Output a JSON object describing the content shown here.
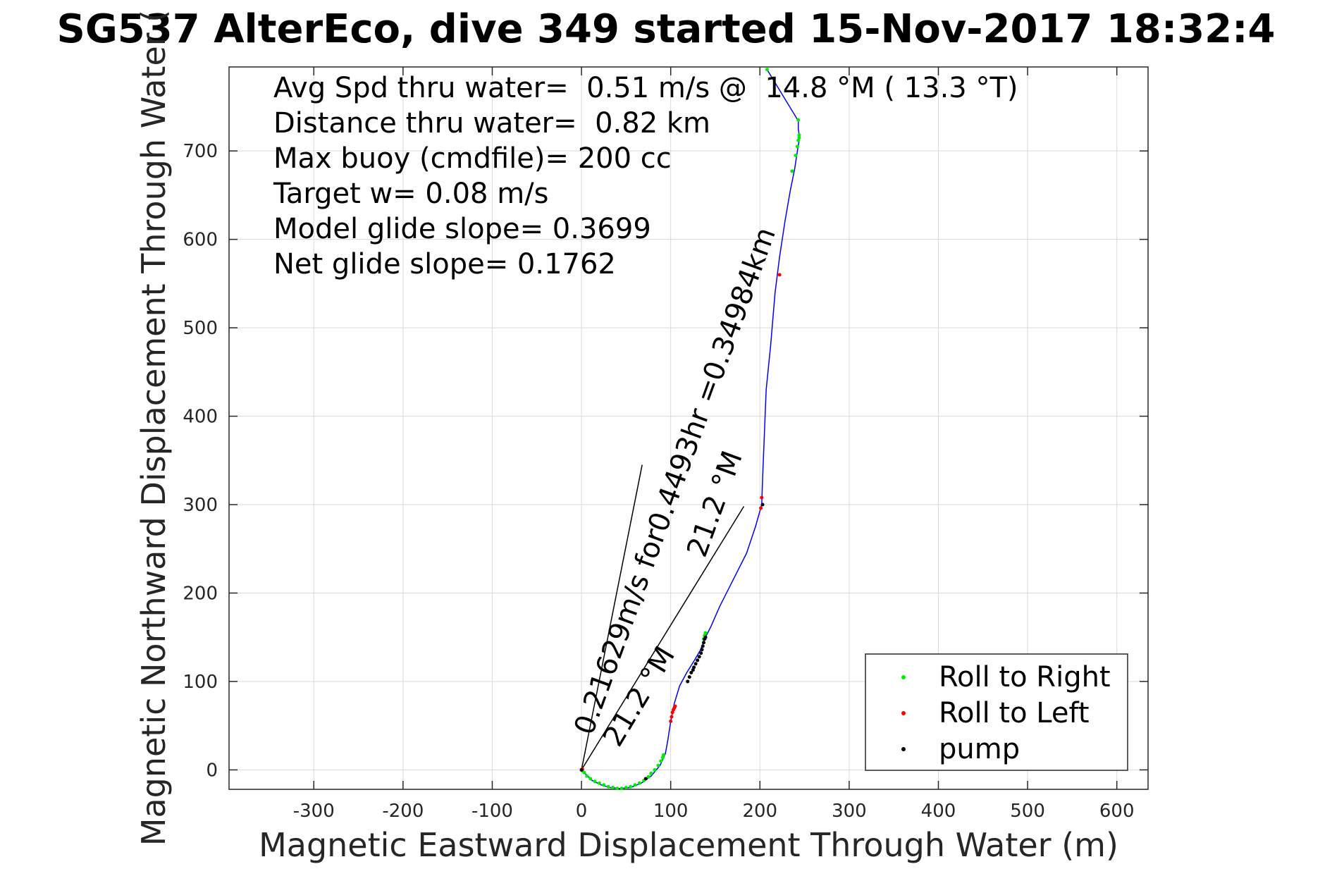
{
  "chart_data": {
    "type": "line",
    "title": "SG537 AlterEco, dive 349 started 15-Nov-2017 18:32:4",
    "xlabel": "Magnetic Eastward Displacement Through Water (m)",
    "ylabel": "Magnetic Northward Displacement Through Water (",
    "xlim": [
      -395,
      635
    ],
    "ylim": [
      -22,
      795
    ],
    "xticks": [
      -300,
      -200,
      -100,
      0,
      100,
      200,
      300,
      400,
      500,
      600
    ],
    "xtick_labels": [
      "-300",
      "-200",
      "-100",
      "0",
      "100",
      "200",
      "300",
      "400",
      "500",
      "600"
    ],
    "yticks": [
      0,
      100,
      200,
      300,
      400,
      500,
      600,
      700
    ],
    "ytick_labels": [
      "0",
      "100",
      "200",
      "300",
      "400",
      "500",
      "600",
      "700"
    ],
    "grid": true,
    "legend_position": "bottom-right",
    "stats": [
      "Avg Spd thru water=  0.51 m/s @  14.8 °M ( 13.3 °T)",
      "Distance thru water=  0.82 km",
      "Max buoy (cmdfile)= 200 cc",
      "Target w= 0.08 m/s",
      "Model glide slope= 0.3699",
      "Net glide slope= 0.1762"
    ],
    "annotations": [
      "0.21629m/s for0.4493hr =0.34984km",
      "21.2 °M",
      "21.2 °M"
    ],
    "colors": {
      "track": "#0000ff",
      "roll_right": "#00ee00",
      "roll_left": "#ff0000",
      "pump": "#000000",
      "grid": "#d9d9d9",
      "axis": "#262626"
    },
    "series": [
      {
        "name": "track",
        "kind": "line",
        "x": [
          0,
          5,
          12,
          22,
          32,
          43,
          55,
          67,
          78,
          88,
          94,
          97,
          100,
          104,
          110,
          118,
          126,
          133,
          139,
          145,
          155,
          170,
          185,
          195,
          202,
          203,
          205,
          207,
          212,
          217,
          222,
          228,
          234,
          239,
          242,
          244,
          244,
          243,
          243,
          208
        ],
        "y": [
          0,
          -5,
          -12,
          -17,
          -20,
          -21,
          -20,
          -15,
          -7,
          5,
          18,
          35,
          55,
          75,
          95,
          110,
          123,
          135,
          150,
          162,
          185,
          215,
          245,
          275,
          300,
          330,
          380,
          430,
          480,
          540,
          580,
          620,
          655,
          680,
          700,
          712,
          718,
          725,
          734,
          792
        ]
      },
      {
        "name": "Roll to Right",
        "kind": "points",
        "x": [
          1,
          3,
          6,
          10,
          15,
          20,
          25,
          30,
          35,
          40,
          45,
          50,
          55,
          60,
          65,
          70,
          75,
          78,
          82,
          86,
          89,
          91,
          92,
          137,
          138,
          139,
          139,
          236,
          240,
          242,
          243,
          244,
          244,
          243,
          208
        ],
        "y": [
          -1,
          -3,
          -7,
          -10,
          -13,
          -15,
          -17,
          -19,
          -20,
          -21,
          -21,
          -20,
          -19,
          -17,
          -15,
          -12,
          -8,
          -4,
          0,
          5,
          10,
          14,
          17,
          148,
          152,
          155,
          150,
          677,
          695,
          705,
          712,
          715,
          718,
          735,
          792
        ]
      },
      {
        "name": "Roll to Left",
        "kind": "points",
        "x": [
          0,
          1,
          100,
          101,
          102,
          103,
          104,
          105,
          201,
          202,
          222
        ],
        "y": [
          0,
          1,
          55,
          60,
          65,
          68,
          70,
          72,
          296,
          308,
          560
        ]
      },
      {
        "name": "pump",
        "kind": "points",
        "x": [
          0,
          72,
          119,
          121,
          123,
          125,
          126,
          128,
          130,
          132,
          134,
          135,
          136,
          137,
          138,
          139,
          203
        ],
        "y": [
          0,
          -10,
          100,
          105,
          110,
          113,
          116,
          120,
          124,
          128,
          132,
          136,
          140,
          144,
          148,
          150,
          300
        ]
      }
    ],
    "reference_lines": [
      {
        "x": [
          0,
          68
        ],
        "y": [
          0,
          345
        ]
      },
      {
        "x": [
          0,
          182
        ],
        "y": [
          0,
          298
        ]
      }
    ],
    "legend": [
      {
        "label": "Roll to Right",
        "series": "Roll to Right"
      },
      {
        "label": "Roll to Left",
        "series": "Roll to Left"
      },
      {
        "label": "pump",
        "series": "pump"
      }
    ]
  }
}
